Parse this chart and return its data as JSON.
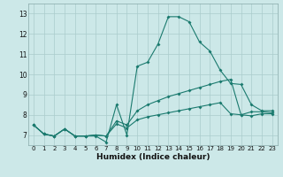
{
  "background_color": "#cce8e8",
  "grid_color": "#aacccc",
  "line_color": "#1a7a6e",
  "xlabel": "Humidex (Indice chaleur)",
  "xlim": [
    -0.5,
    23.5
  ],
  "ylim": [
    6.5,
    13.5
  ],
  "yticks": [
    7,
    8,
    9,
    10,
    11,
    12,
    13
  ],
  "xticks": [
    0,
    1,
    2,
    3,
    4,
    5,
    6,
    7,
    8,
    9,
    10,
    11,
    12,
    13,
    14,
    15,
    16,
    17,
    18,
    19,
    20,
    21,
    22,
    23
  ],
  "line1_y": [
    7.5,
    7.05,
    6.95,
    7.3,
    6.95,
    6.95,
    6.95,
    6.65,
    8.5,
    7.0,
    10.4,
    10.6,
    11.5,
    12.85,
    12.85,
    12.6,
    11.6,
    11.15,
    10.2,
    9.55,
    9.5,
    8.5,
    8.2,
    8.2
  ],
  "line2_y": [
    7.5,
    7.05,
    6.95,
    7.3,
    6.95,
    6.95,
    7.0,
    6.95,
    7.7,
    7.5,
    8.2,
    8.5,
    8.7,
    8.9,
    9.05,
    9.2,
    9.35,
    9.5,
    9.65,
    9.75,
    8.0,
    8.15,
    8.15,
    8.1
  ],
  "line3_y": [
    7.5,
    7.05,
    6.95,
    7.3,
    6.95,
    6.95,
    7.0,
    6.95,
    7.55,
    7.35,
    7.75,
    7.9,
    8.0,
    8.1,
    8.2,
    8.3,
    8.4,
    8.5,
    8.6,
    8.05,
    8.0,
    7.95,
    8.05,
    8.05
  ],
  "markersize": 2.0
}
